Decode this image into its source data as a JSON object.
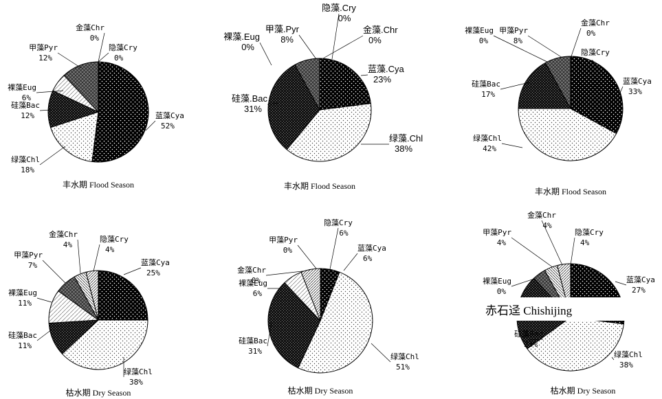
{
  "station_label": "赤石迳 Chishijing",
  "colors": {
    "cya": "#000000",
    "chl": "#ffffff",
    "bac": "#1a1a1a",
    "eug": "#ffffff",
    "pyr": "#555555",
    "cry": "#ffffff",
    "chr": "#ffffff"
  },
  "chart_data": [
    {
      "type": "pie",
      "caption": "丰水期  Flood Season",
      "slices": [
        {
          "label": "金藻Chr",
          "pct": "0%",
          "value": 0,
          "pattern": "chr"
        },
        {
          "label": "蓝藻Cya",
          "pct": "52%",
          "value": 52,
          "pattern": "cya"
        },
        {
          "label": "绿藻Chl",
          "pct": "18%",
          "value": 18,
          "pattern": "chl"
        },
        {
          "label": "硅藻Bac",
          "pct": "12%",
          "value": 12,
          "pattern": "bac"
        },
        {
          "label": "裸藻Eug",
          "pct": "6%",
          "value": 6,
          "pattern": "eug"
        },
        {
          "label": "甲藻Pyr",
          "pct": "12%",
          "value": 12,
          "pattern": "pyr"
        },
        {
          "label": "隐藻Cry",
          "pct": "0%",
          "value": 0,
          "pattern": "cry"
        }
      ]
    },
    {
      "type": "pie",
      "caption": "丰水期 Flood Season",
      "slices": [
        {
          "label": "金藻.Chr",
          "pct": "0%",
          "value": 0,
          "pattern": "chr"
        },
        {
          "label": "蓝藻.Cya",
          "pct": "23%",
          "value": 23,
          "pattern": "cya"
        },
        {
          "label": "绿藻.Chl",
          "pct": "38%",
          "value": 38,
          "pattern": "chl"
        },
        {
          "label": "硅藻.Bac",
          "pct": "31%",
          "value": 31,
          "pattern": "bac"
        },
        {
          "label": "裸藻.Eug",
          "pct": "0%",
          "value": 0,
          "pattern": "eug"
        },
        {
          "label": "甲藻.Pyr",
          "pct": "8%",
          "value": 8,
          "pattern": "pyr"
        },
        {
          "label": "隐藻.Cry",
          "pct": "0%",
          "value": 0,
          "pattern": "cry"
        }
      ]
    },
    {
      "type": "pie",
      "caption": "丰水期 Flood Season",
      "slices": [
        {
          "label": "金藻Chr",
          "pct": "0%",
          "value": 0,
          "pattern": "chr"
        },
        {
          "label": "隐藻Cry",
          "pct": "0%",
          "value": 0,
          "pattern": "cry"
        },
        {
          "label": "蓝藻Cya",
          "pct": "33%",
          "value": 33,
          "pattern": "cya"
        },
        {
          "label": "绿藻Chl",
          "pct": "42%",
          "value": 42,
          "pattern": "chl"
        },
        {
          "label": "硅藻Bac",
          "pct": "17%",
          "value": 17,
          "pattern": "bac"
        },
        {
          "label": "裸藻Eug",
          "pct": "0%",
          "value": 0,
          "pattern": "eug"
        },
        {
          "label": "甲藻Pyr",
          "pct": "8%",
          "value": 8,
          "pattern": "pyr"
        }
      ]
    },
    {
      "type": "pie",
      "caption": "枯水期  Dry  Season",
      "slices": [
        {
          "label": "蓝藻Cya",
          "pct": "25%",
          "value": 25,
          "pattern": "cya"
        },
        {
          "label": "绿藻Chl",
          "pct": "38%",
          "value": 38,
          "pattern": "chl"
        },
        {
          "label": "硅藻Bac",
          "pct": "11%",
          "value": 11,
          "pattern": "bac"
        },
        {
          "label": "裸藻Eug",
          "pct": "11%",
          "value": 11,
          "pattern": "eug"
        },
        {
          "label": "甲藻Pyr",
          "pct": "7%",
          "value": 7,
          "pattern": "pyr"
        },
        {
          "label": "金藻Chr",
          "pct": "4%",
          "value": 4,
          "pattern": "chr"
        },
        {
          "label": "隐藻Cry",
          "pct": "4%",
          "value": 4,
          "pattern": "cry"
        }
      ]
    },
    {
      "type": "pie",
      "caption": "枯水期 Dry Season",
      "slices": [
        {
          "label": "蓝藻Cya",
          "pct": "6%",
          "value": 6,
          "pattern": "cya"
        },
        {
          "label": "绿藻Chl",
          "pct": "51%",
          "value": 51,
          "pattern": "chl"
        },
        {
          "label": "硅藻Bac",
          "pct": "31%",
          "value": 31,
          "pattern": "bac"
        },
        {
          "label": "裸藻Eug",
          "pct": "6%",
          "value": 6,
          "pattern": "eug"
        },
        {
          "label": "金藻Chr",
          "pct": "0%",
          "value": 0,
          "pattern": "chr"
        },
        {
          "label": "甲藻Pyr",
          "pct": "0%",
          "value": 0,
          "pattern": "pyr"
        },
        {
          "label": "隐藻Cry",
          "pct": "6%",
          "value": 6,
          "pattern": "cry"
        }
      ]
    },
    {
      "type": "pie",
      "caption": "枯水期  Dry  Season",
      "slices": [
        {
          "label": "蓝藻Cya",
          "pct": "27%",
          "value": 27,
          "pattern": "cya"
        },
        {
          "label": "绿藻Chl",
          "pct": "38%",
          "value": 38,
          "pattern": "chl"
        },
        {
          "label": "硅藻Bac",
          "pct": "23%",
          "value": 23,
          "pattern": "bac"
        },
        {
          "label": "裸藻Eug",
          "pct": "0%",
          "value": 0,
          "pattern": "eug"
        },
        {
          "label": "甲藻Pyr",
          "pct": "4%",
          "value": 4,
          "pattern": "pyr"
        },
        {
          "label": "金藻Chr",
          "pct": "4%",
          "value": 4,
          "pattern": "chr"
        },
        {
          "label": "隐藻Cry",
          "pct": "4%",
          "value": 4,
          "pattern": "cry"
        }
      ]
    }
  ]
}
